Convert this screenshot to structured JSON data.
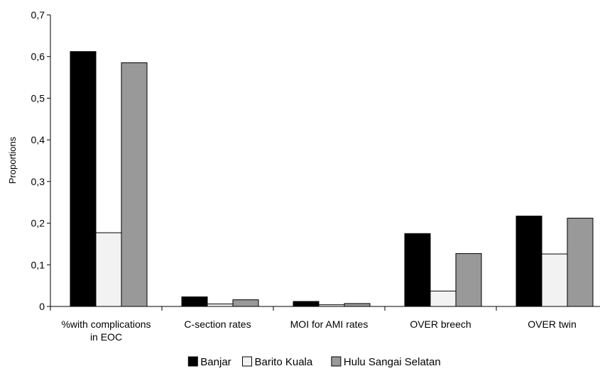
{
  "chart_data": {
    "type": "bar",
    "title": "",
    "xlabel": "",
    "ylabel": "Proportions",
    "ylim": [
      0,
      0.7
    ],
    "yticks": [
      "0",
      "0,1",
      "0,2",
      "0,3",
      "0,4",
      "0,5",
      "0,6",
      "0,7"
    ],
    "categories": [
      [
        "%with complications",
        "in EOC"
      ],
      [
        "C-section rates"
      ],
      [
        "MOI for AMI rates"
      ],
      [
        "OVER breech"
      ],
      [
        "OVER twin"
      ]
    ],
    "series": [
      {
        "name": "Banjar",
        "color": "#000000",
        "values": [
          0.612,
          0.023,
          0.012,
          0.175,
          0.217
        ]
      },
      {
        "name": "Barito Kuala",
        "color": "#f2f2f2",
        "values": [
          0.177,
          0.006,
          0.004,
          0.037,
          0.126
        ]
      },
      {
        "name": "Hulu Sangai Selatan",
        "color": "#999999",
        "values": [
          0.585,
          0.016,
          0.007,
          0.127,
          0.212
        ]
      }
    ],
    "legend_position": "bottom",
    "grid": false
  }
}
